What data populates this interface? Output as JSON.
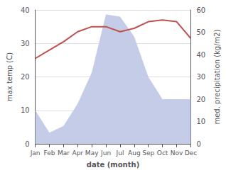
{
  "chart_data": {
    "type": "line",
    "xlabel": "date (month)",
    "ylabel": "max temp (C)",
    "y2label": "med. precipitation (kg/m2)",
    "categories": [
      "Jan",
      "Feb",
      "Mar",
      "Apr",
      "May",
      "Jun",
      "Jul",
      "Aug",
      "Sep",
      "Oct",
      "Nov",
      "Dec"
    ],
    "series": [
      {
        "type": "area",
        "axis": "y2",
        "color": "#c5cce8",
        "values": [
          15,
          5,
          8,
          18,
          32,
          58,
          57,
          48,
          30,
          20,
          20,
          20
        ]
      },
      {
        "type": "line",
        "color": "#c0504d",
        "values": [
          25.5,
          28.0,
          30.5,
          33.5,
          35.0,
          35.0,
          33.5,
          34.5,
          36.5,
          37.0,
          36.5,
          31.5
        ]
      }
    ],
    "ylim": [
      0,
      40
    ],
    "yticks": [
      0,
      10,
      20,
      30,
      40
    ],
    "y2lim": [
      0,
      60
    ],
    "y2ticks": [
      0,
      10,
      20,
      30,
      40,
      50,
      60
    ],
    "grid": true
  }
}
